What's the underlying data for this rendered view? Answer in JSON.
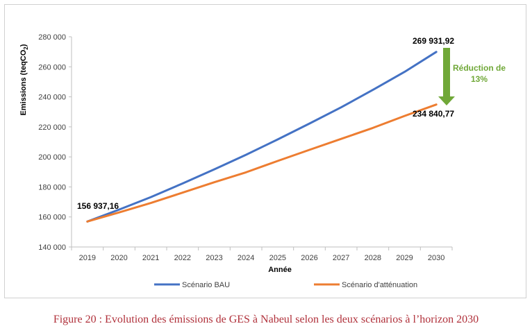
{
  "chart_data": {
    "type": "line",
    "title": "",
    "xlabel": "Année",
    "ylabel_main": "Emissions (teqCO",
    "ylabel_sub": "2",
    "ylabel_end": ")",
    "ylim": [
      140000,
      280000
    ],
    "yticks": [
      140000,
      160000,
      180000,
      200000,
      220000,
      240000,
      260000,
      280000
    ],
    "ytick_labels": [
      "140 000",
      "160 000",
      "180 000",
      "200 000",
      "220 000",
      "240 000",
      "260 000",
      "280 000"
    ],
    "x": [
      "2019",
      "2020",
      "2021",
      "2022",
      "2023",
      "2024",
      "2025",
      "2026",
      "2027",
      "2028",
      "2029",
      "2030"
    ],
    "series": [
      {
        "name": "Scénario BAU",
        "color": "#4472c4",
        "values": [
          156937.16,
          164900,
          173200,
          182300,
          191700,
          201400,
          211600,
          222200,
          233000,
          244600,
          256600,
          269931.92
        ]
      },
      {
        "name": "Scénario d'atténuation",
        "color": "#ed7d31",
        "values": [
          156937.16,
          163000,
          169300,
          176200,
          183100,
          189700,
          197300,
          204700,
          212000,
          219300,
          227300,
          234840.77
        ]
      }
    ],
    "grid": false,
    "legend_position": "bottom",
    "data_labels": {
      "start": "156 937,16",
      "bau_end": "269 931,92",
      "att_end": "234 840,77"
    },
    "annotation": {
      "line1": "Réduction de",
      "line2": "13%",
      "color": "#70a838"
    }
  },
  "caption": "Figure 20 : Evolution des émissions de GES à Nabeul selon les deux scénarios à l’horizon 2030"
}
